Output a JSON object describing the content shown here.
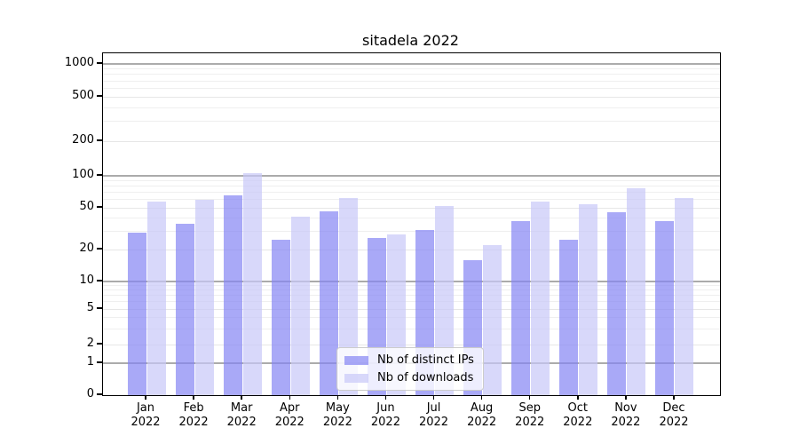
{
  "chart_data": {
    "type": "bar",
    "title": "sitadela 2022",
    "categories": [
      "Jan",
      "Feb",
      "Mar",
      "Apr",
      "May",
      "Jun",
      "Jul",
      "Aug",
      "Sep",
      "Oct",
      "Nov",
      "Dec"
    ],
    "year_label": "2022",
    "series": [
      {
        "name": "Nb of distinct IPs",
        "color": "#8484f4",
        "opacity": 0.7,
        "values": [
          29,
          35,
          65,
          25,
          46,
          26,
          31,
          16,
          37,
          25,
          45,
          37
        ]
      },
      {
        "name": "Nb of downloads",
        "color": "#c7c7f8",
        "opacity": 0.7,
        "values": [
          57,
          60,
          105,
          41,
          62,
          28,
          52,
          22,
          57,
          54,
          77,
          62
        ]
      }
    ],
    "y_axis": {
      "scale": "symlog",
      "ticks": [
        0,
        1,
        2,
        5,
        10,
        20,
        50,
        100,
        200,
        500,
        1000
      ],
      "major_ticks": [
        1,
        10,
        100,
        1000
      ],
      "ylim": [
        0,
        1250
      ]
    },
    "grid": true,
    "legend": {
      "position": "lower center"
    },
    "colors": {
      "axis": "#000000",
      "major_grid": "#ababab",
      "minor_grid": "#e6e6e6",
      "faint_grid": "#efefef",
      "background": "#ffffff",
      "text": "#000000"
    }
  }
}
